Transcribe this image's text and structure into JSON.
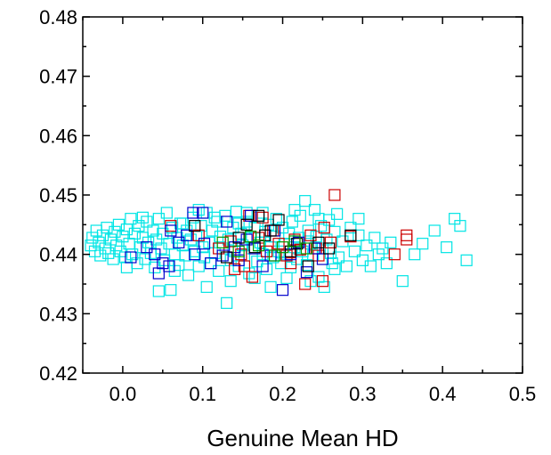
{
  "chart_data": {
    "type": "scatter",
    "title": "",
    "xlabel": "Genuine Mean HD",
    "ylabel": "",
    "xlim": [
      -0.05,
      0.5
    ],
    "ylim": [
      0.42,
      0.48
    ],
    "xticks": [
      0.0,
      0.1,
      0.2,
      0.3,
      0.4,
      0.5
    ],
    "xtick_labels": [
      "0.0",
      "0.1",
      "0.2",
      "0.3",
      "0.4",
      "0.5"
    ],
    "yticks": [
      0.42,
      0.43,
      0.44,
      0.45,
      0.46,
      0.47,
      0.48
    ],
    "ytick_labels": [
      "0.42",
      "0.43",
      "0.44",
      "0.45",
      "0.46",
      "0.47",
      "0.48"
    ],
    "grid": false,
    "legend": "none",
    "marker": "open-square",
    "series": [
      {
        "color": "#00E5E5",
        "points": [
          [
            -0.04,
            0.4415
          ],
          [
            -0.038,
            0.4428
          ],
          [
            -0.035,
            0.4405
          ],
          [
            -0.033,
            0.444
          ],
          [
            -0.03,
            0.442
          ],
          [
            -0.028,
            0.4398
          ],
          [
            -0.025,
            0.4432
          ],
          [
            -0.022,
            0.441
          ],
          [
            -0.02,
            0.4445
          ],
          [
            -0.018,
            0.4402
          ],
          [
            -0.015,
            0.4425
          ],
          [
            -0.012,
            0.4392
          ],
          [
            -0.01,
            0.4438
          ],
          [
            -0.008,
            0.4415
          ],
          [
            -0.005,
            0.445
          ],
          [
            -0.003,
            0.4405
          ],
          [
            0.0,
            0.443
          ],
          [
            0.003,
            0.4395
          ],
          [
            0.005,
            0.4442
          ],
          [
            0.008,
            0.4418
          ],
          [
            0.01,
            0.446
          ],
          [
            0.012,
            0.44
          ],
          [
            0.015,
            0.4435
          ],
          [
            0.018,
            0.4385
          ],
          [
            0.02,
            0.4448
          ],
          [
            0.022,
            0.4412
          ],
          [
            0.025,
            0.4428
          ],
          [
            0.028,
            0.4392
          ],
          [
            0.03,
            0.4455
          ],
          [
            0.032,
            0.442
          ],
          [
            0.035,
            0.4402
          ],
          [
            0.038,
            0.444
          ],
          [
            0.04,
            0.4378
          ],
          [
            0.042,
            0.4425
          ],
          [
            0.045,
            0.446
          ],
          [
            0.048,
            0.441
          ],
          [
            0.05,
            0.4435
          ],
          [
            0.052,
            0.439
          ],
          [
            0.055,
            0.447
          ],
          [
            0.058,
            0.4418
          ],
          [
            0.06,
            0.434
          ],
          [
            0.062,
            0.4445
          ],
          [
            0.065,
            0.44
          ],
          [
            0.068,
            0.4428
          ],
          [
            0.07,
            0.4382
          ],
          [
            0.072,
            0.4452
          ],
          [
            0.075,
            0.4415
          ],
          [
            0.078,
            0.4398
          ],
          [
            0.08,
            0.444
          ],
          [
            0.082,
            0.4365
          ],
          [
            0.085,
            0.4425
          ],
          [
            0.088,
            0.4462
          ],
          [
            0.09,
            0.4405
          ],
          [
            0.092,
            0.4432
          ],
          [
            0.095,
            0.438
          ],
          [
            0.098,
            0.4448
          ],
          [
            0.1,
            0.4412
          ],
          [
            0.102,
            0.4395
          ],
          [
            0.105,
            0.447
          ],
          [
            0.108,
            0.442
          ],
          [
            0.11,
            0.4385
          ],
          [
            0.112,
            0.444
          ],
          [
            0.115,
            0.4402
          ],
          [
            0.118,
            0.4455
          ],
          [
            0.12,
            0.4372
          ],
          [
            0.122,
            0.443
          ],
          [
            0.125,
            0.441
          ],
          [
            0.128,
            0.4465
          ],
          [
            0.13,
            0.4318
          ],
          [
            0.132,
            0.4425
          ],
          [
            0.135,
            0.439
          ],
          [
            0.138,
            0.4445
          ],
          [
            0.14,
            0.4405
          ],
          [
            0.142,
            0.4472
          ],
          [
            0.145,
            0.438
          ],
          [
            0.148,
            0.4435
          ],
          [
            0.15,
            0.4415
          ],
          [
            0.152,
            0.4398
          ],
          [
            0.155,
            0.4455
          ],
          [
            0.158,
            0.4368
          ],
          [
            0.16,
            0.4428
          ],
          [
            0.162,
            0.441
          ],
          [
            0.165,
            0.4445
          ],
          [
            0.168,
            0.4388
          ],
          [
            0.17,
            0.4462
          ],
          [
            0.172,
            0.442
          ],
          [
            0.175,
            0.44
          ],
          [
            0.178,
            0.4438
          ],
          [
            0.18,
            0.4375
          ],
          [
            0.182,
            0.445
          ],
          [
            0.185,
            0.4412
          ],
          [
            0.188,
            0.4395
          ],
          [
            0.19,
            0.443
          ],
          [
            0.192,
            0.446
          ],
          [
            0.195,
            0.4405
          ],
          [
            0.198,
            0.4385
          ],
          [
            0.2,
            0.4445
          ],
          [
            0.202,
            0.4418
          ],
          [
            0.205,
            0.44
          ],
          [
            0.208,
            0.4435
          ],
          [
            0.21,
            0.4378
          ],
          [
            0.212,
            0.4455
          ],
          [
            0.215,
            0.4412
          ],
          [
            0.218,
            0.4392
          ],
          [
            0.22,
            0.4428
          ],
          [
            0.222,
            0.4465
          ],
          [
            0.225,
            0.4405
          ],
          [
            0.228,
            0.449
          ],
          [
            0.23,
            0.4382
          ],
          [
            0.232,
            0.444
          ],
          [
            0.235,
            0.4418
          ],
          [
            0.238,
            0.4398
          ],
          [
            0.24,
            0.4475
          ],
          [
            0.242,
            0.443
          ],
          [
            0.245,
            0.4362
          ],
          [
            0.248,
            0.4448
          ],
          [
            0.25,
            0.441
          ],
          [
            0.252,
            0.4345
          ],
          [
            0.255,
            0.4425
          ],
          [
            0.258,
            0.4458
          ],
          [
            0.26,
            0.4402
          ],
          [
            0.262,
            0.4385
          ],
          [
            0.265,
            0.4438
          ],
          [
            0.268,
            0.4468
          ],
          [
            0.27,
            0.4395
          ],
          [
            0.275,
            0.4422
          ],
          [
            0.28,
            0.438
          ],
          [
            0.285,
            0.4445
          ],
          [
            0.29,
            0.4405
          ],
          [
            0.295,
            0.4432
          ],
          [
            0.3,
            0.439
          ],
          [
            0.305,
            0.4415
          ],
          [
            0.31,
            0.438
          ],
          [
            0.315,
            0.4428
          ],
          [
            0.32,
            0.44
          ],
          [
            0.325,
            0.441
          ],
          [
            0.33,
            0.4385
          ],
          [
            0.335,
            0.442
          ],
          [
            0.35,
            0.4355
          ],
          [
            0.365,
            0.44
          ],
          [
            0.375,
            0.4418
          ],
          [
            0.39,
            0.444
          ],
          [
            0.405,
            0.4412
          ],
          [
            0.415,
            0.446
          ],
          [
            0.422,
            0.4448
          ],
          [
            0.43,
            0.439
          ],
          [
            0.045,
            0.4338
          ],
          [
            0.075,
            0.4452
          ],
          [
            0.105,
            0.4345
          ],
          [
            0.155,
            0.447
          ],
          [
            0.185,
            0.4345
          ],
          [
            0.215,
            0.4475
          ],
          [
            0.095,
            0.4475
          ],
          [
            0.135,
            0.4355
          ],
          [
            0.165,
            0.436
          ],
          [
            0.245,
            0.446
          ],
          [
            0.005,
            0.4378
          ],
          [
            0.025,
            0.4462
          ],
          [
            0.065,
            0.4372
          ],
          [
            0.115,
            0.4462
          ],
          [
            0.145,
            0.4452
          ],
          [
            0.175,
            0.447
          ],
          [
            0.205,
            0.436
          ],
          [
            0.235,
            0.4355
          ],
          [
            0.265,
            0.4375
          ],
          [
            0.295,
            0.446
          ]
        ]
      },
      {
        "color": "#CC0000",
        "points": [
          [
            0.06,
            0.4448
          ],
          [
            0.095,
            0.4432
          ],
          [
            0.12,
            0.441
          ],
          [
            0.135,
            0.4422
          ],
          [
            0.148,
            0.44
          ],
          [
            0.152,
            0.438
          ],
          [
            0.158,
            0.4465
          ],
          [
            0.162,
            0.4362
          ],
          [
            0.17,
            0.4428
          ],
          [
            0.18,
            0.4405
          ],
          [
            0.188,
            0.444
          ],
          [
            0.195,
            0.4418
          ],
          [
            0.205,
            0.4398
          ],
          [
            0.215,
            0.4425
          ],
          [
            0.222,
            0.4408
          ],
          [
            0.228,
            0.435
          ],
          [
            0.235,
            0.4432
          ],
          [
            0.242,
            0.441
          ],
          [
            0.25,
            0.4355
          ],
          [
            0.252,
            0.4445
          ],
          [
            0.26,
            0.442
          ],
          [
            0.265,
            0.45
          ],
          [
            0.285,
            0.443
          ],
          [
            0.34,
            0.44
          ],
          [
            0.355,
            0.4432
          ],
          [
            0.355,
            0.4425
          ],
          [
            0.14,
            0.4375
          ],
          [
            0.175,
            0.4462
          ],
          [
            0.21,
            0.4385
          ],
          [
            0.245,
            0.4398
          ]
        ]
      },
      {
        "color": "#0000CC",
        "points": [
          [
            0.01,
            0.4395
          ],
          [
            0.03,
            0.4412
          ],
          [
            0.04,
            0.44
          ],
          [
            0.05,
            0.4385
          ],
          [
            0.058,
            0.438
          ],
          [
            0.07,
            0.442
          ],
          [
            0.08,
            0.4432
          ],
          [
            0.088,
            0.447
          ],
          [
            0.09,
            0.44
          ],
          [
            0.1,
            0.447
          ],
          [
            0.102,
            0.4418
          ],
          [
            0.11,
            0.4385
          ],
          [
            0.125,
            0.4398
          ],
          [
            0.14,
            0.4412
          ],
          [
            0.145,
            0.439
          ],
          [
            0.155,
            0.4425
          ],
          [
            0.165,
            0.441
          ],
          [
            0.175,
            0.438
          ],
          [
            0.19,
            0.444
          ],
          [
            0.2,
            0.434
          ],
          [
            0.21,
            0.44
          ],
          [
            0.22,
            0.442
          ],
          [
            0.23,
            0.437
          ],
          [
            0.24,
            0.441
          ],
          [
            0.25,
            0.4392
          ],
          [
            0.045,
            0.4368
          ],
          [
            0.06,
            0.444
          ],
          [
            0.13,
            0.4455
          ],
          [
            0.16,
            0.4465
          ],
          [
            0.185,
            0.4398
          ]
        ]
      },
      {
        "color": "#000000",
        "points": [
          [
            0.09,
            0.4448
          ],
          [
            0.13,
            0.4395
          ],
          [
            0.145,
            0.4428
          ],
          [
            0.165,
            0.4412
          ],
          [
            0.17,
            0.4465
          ],
          [
            0.178,
            0.4432
          ],
          [
            0.185,
            0.444
          ],
          [
            0.195,
            0.4458
          ],
          [
            0.21,
            0.4405
          ],
          [
            0.218,
            0.4418
          ],
          [
            0.232,
            0.438
          ],
          [
            0.245,
            0.442
          ],
          [
            0.258,
            0.441
          ],
          [
            0.285,
            0.4432
          ],
          [
            0.155,
            0.445
          ]
        ]
      },
      {
        "color": "#009900",
        "points": [
          [
            0.125,
            0.442
          ],
          [
            0.145,
            0.4405
          ],
          [
            0.17,
            0.4415
          ],
          [
            0.2,
            0.4412
          ],
          [
            0.215,
            0.4422
          ],
          [
            0.23,
            0.441
          ],
          [
            0.19,
            0.4398
          ],
          [
            0.16,
            0.443
          ]
        ]
      }
    ]
  }
}
